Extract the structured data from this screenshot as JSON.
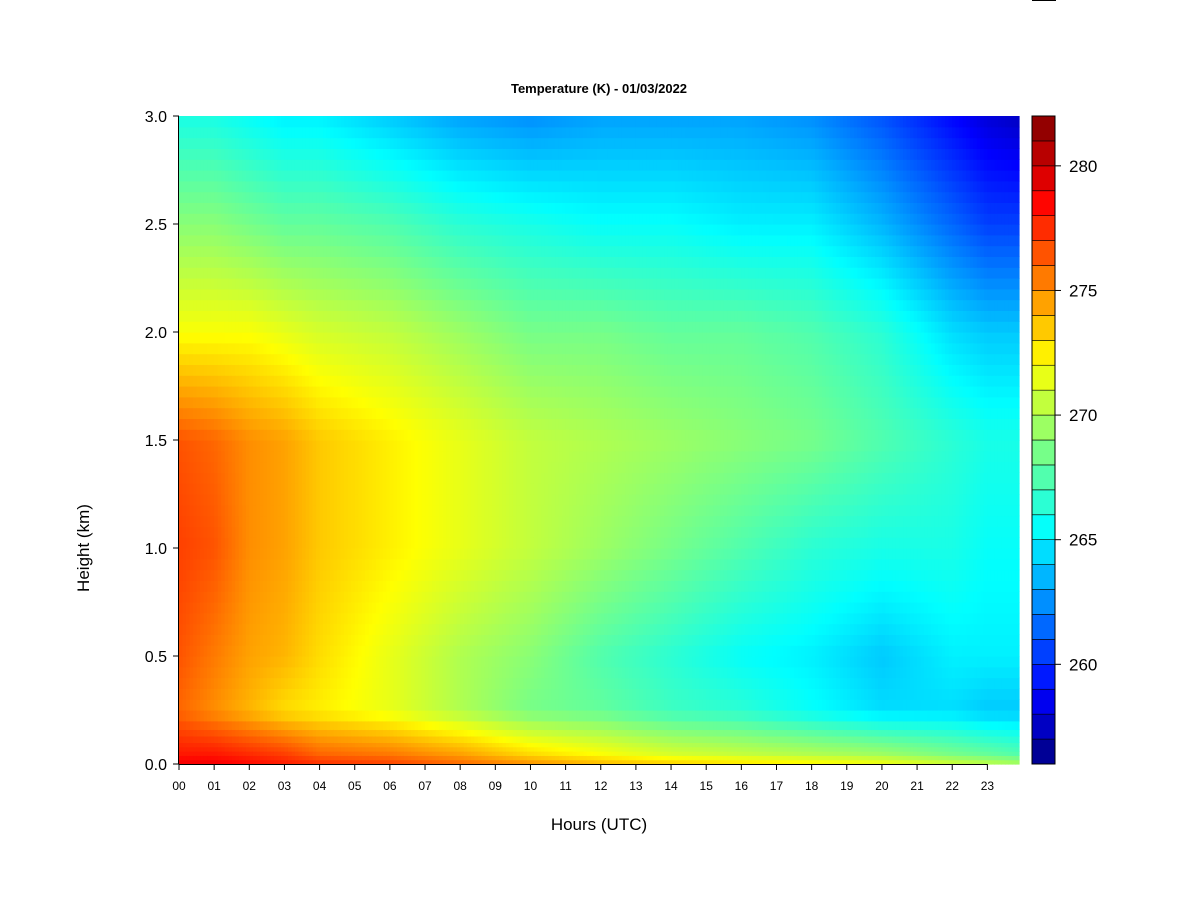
{
  "chart_data": {
    "type": "heatmap",
    "title": "Temperature (K) - 01/03/2022",
    "xlabel": "Hours (UTC)",
    "ylabel": "Height (km)",
    "x_ticks": [
      "00",
      "01",
      "02",
      "03",
      "04",
      "05",
      "06",
      "07",
      "08",
      "09",
      "10",
      "11",
      "12",
      "13",
      "14",
      "15",
      "16",
      "17",
      "18",
      "19",
      "20",
      "21",
      "22",
      "23"
    ],
    "xlim": [
      0,
      23.9
    ],
    "y_ticks": [
      "0.0",
      "0.5",
      "1.0",
      "1.5",
      "2.0",
      "2.5",
      "3.0"
    ],
    "ylim": [
      0,
      3.0
    ],
    "colorbar": {
      "label": "Temperature (K)",
      "min": 256,
      "max": 282,
      "step": 1,
      "ticks": [
        "260",
        "265",
        "270",
        "275",
        "280"
      ]
    },
    "grid": false,
    "heights_km": [
      0.0,
      0.05,
      0.25,
      0.5,
      1.0,
      1.5,
      2.0,
      2.5,
      3.0
    ],
    "profiles": [
      {
        "hour": 0,
        "temps": [
          279,
          278,
          276,
          276.5,
          277,
          276.5,
          272,
          269,
          266
        ]
      },
      {
        "hour": 1,
        "temps": [
          279,
          278,
          275,
          275.5,
          276.5,
          276,
          272,
          269,
          266
        ]
      },
      {
        "hour": 2,
        "temps": [
          278.5,
          277.5,
          274,
          274.5,
          275,
          275,
          272,
          268.5,
          265.5
        ]
      },
      {
        "hour": 3,
        "temps": [
          278,
          277,
          273,
          274,
          274.5,
          274.5,
          271.5,
          268,
          265
        ]
      },
      {
        "hour": 4,
        "temps": [
          277.5,
          276,
          272.5,
          273,
          273.5,
          273.5,
          271,
          268,
          265
        ]
      },
      {
        "hour": 6,
        "temps": [
          277,
          275.5,
          271.5,
          271.5,
          272.5,
          272.5,
          270.5,
          267.5,
          264
        ]
      },
      {
        "hour": 8,
        "temps": [
          276,
          274.5,
          270,
          270,
          271.5,
          271.5,
          269.5,
          266.5,
          263
        ]
      },
      {
        "hour": 10,
        "temps": [
          275,
          273,
          268.5,
          269,
          270.5,
          270.5,
          268.5,
          266,
          262.5
        ]
      },
      {
        "hour": 12,
        "temps": [
          274,
          272,
          268,
          267.5,
          269.5,
          270,
          268.5,
          265.5,
          263
        ]
      },
      {
        "hour": 14,
        "temps": [
          273.5,
          271,
          267,
          266.5,
          268.5,
          269.5,
          268,
          265.5,
          263
        ]
      },
      {
        "hour": 16,
        "temps": [
          273,
          270.5,
          266.5,
          265.5,
          267.5,
          269,
          268,
          265,
          263
        ]
      },
      {
        "hour": 18,
        "temps": [
          272.5,
          270,
          265.5,
          265,
          266.5,
          268.5,
          267.5,
          265,
          262.5
        ]
      },
      {
        "hour": 20,
        "temps": [
          272,
          269.5,
          264.5,
          264,
          266,
          267.5,
          266.5,
          263.5,
          261
        ]
      },
      {
        "hour": 21,
        "temps": [
          271.5,
          269,
          264.5,
          264.5,
          266,
          267,
          265.5,
          262.5,
          260
        ]
      },
      {
        "hour": 22,
        "temps": [
          271,
          268.5,
          264.5,
          265,
          266,
          266.5,
          264.5,
          261.5,
          259
        ]
      },
      {
        "hour": 23,
        "temps": [
          270.5,
          268,
          264,
          265,
          265.5,
          266,
          264,
          260.5,
          258
        ]
      },
      {
        "hour": 23.9,
        "temps": [
          270,
          267.5,
          264,
          265,
          265.5,
          266,
          264,
          260.5,
          257.5
        ]
      }
    ]
  }
}
